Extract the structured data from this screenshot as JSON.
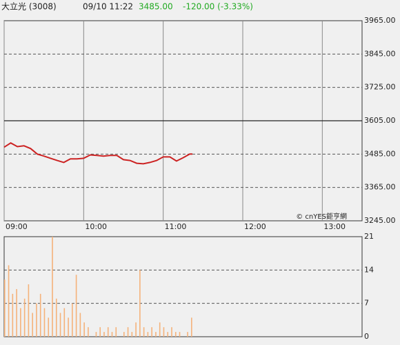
{
  "header": {
    "name": "大立光 (3008)",
    "time": "09/10 11:22",
    "price": "3485.00",
    "change": "-120.00 (-3.33%)",
    "copyright": "© cnYES鉅亨網"
  },
  "chart_data": [
    {
      "type": "line",
      "color": "#cc2222",
      "x": [
        "09:00",
        "09:05",
        "09:10",
        "09:15",
        "09:20",
        "09:25",
        "09:30",
        "09:35",
        "09:40",
        "09:45",
        "09:50",
        "09:55",
        "10:00",
        "10:05",
        "10:10",
        "10:15",
        "10:20",
        "10:25",
        "10:30",
        "10:35",
        "10:40",
        "10:45",
        "10:50",
        "10:55",
        "11:00",
        "11:05",
        "11:10",
        "11:15",
        "11:20",
        "11:22"
      ],
      "values": [
        3510,
        3525,
        3512,
        3515,
        3505,
        3485,
        3478,
        3470,
        3462,
        3455,
        3468,
        3468,
        3470,
        3482,
        3480,
        3478,
        3480,
        3480,
        3465,
        3462,
        3452,
        3450,
        3455,
        3462,
        3475,
        3475,
        3460,
        3472,
        3485,
        3485
      ],
      "xlim": [
        "09:00",
        "13:30"
      ],
      "xticks": [
        "09:00",
        "10:00",
        "11:00",
        "12:00",
        "13:00"
      ],
      "ylim": [
        3245,
        3965
      ],
      "yticks": [
        {
          "value": 3245,
          "label": "3245.00"
        },
        {
          "value": 3365,
          "label": "3365.00"
        },
        {
          "value": 3485,
          "label": "3485.00"
        },
        {
          "value": 3605,
          "label": "3605.00"
        },
        {
          "value": 3725,
          "label": "3725.00"
        },
        {
          "value": 3845,
          "label": "3845.00"
        },
        {
          "value": 3965,
          "label": "3965.00"
        }
      ],
      "reference_line": 3605,
      "grid": true
    },
    {
      "type": "bar",
      "color": "#f5b27a",
      "x": [
        "09:00",
        "09:03",
        "09:06",
        "09:09",
        "09:12",
        "09:15",
        "09:18",
        "09:21",
        "09:24",
        "09:27",
        "09:30",
        "09:33",
        "09:36",
        "09:39",
        "09:42",
        "09:45",
        "09:48",
        "09:51",
        "09:54",
        "09:57",
        "10:00",
        "10:03",
        "10:06",
        "10:09",
        "10:12",
        "10:15",
        "10:18",
        "10:21",
        "10:24",
        "10:27",
        "10:30",
        "10:33",
        "10:36",
        "10:39",
        "10:42",
        "10:45",
        "10:48",
        "10:51",
        "10:54",
        "10:57",
        "11:00",
        "11:03",
        "11:06",
        "11:09",
        "11:12",
        "11:15",
        "11:18",
        "11:21"
      ],
      "values": [
        12,
        15,
        9,
        10,
        6,
        8,
        11,
        5,
        7,
        9,
        6,
        4,
        21,
        8,
        5,
        6,
        4,
        7,
        13,
        5,
        3,
        2,
        0,
        1,
        2,
        1,
        2,
        1,
        2,
        0,
        1,
        2,
        1,
        3,
        14,
        2,
        1,
        2,
        1,
        3,
        2,
        1,
        2,
        1,
        1,
        0,
        1,
        4
      ],
      "xlim": [
        "09:00",
        "13:30"
      ],
      "ylim": [
        0,
        21
      ],
      "yticks": [
        0,
        7,
        14,
        21
      ],
      "grid": true
    }
  ]
}
